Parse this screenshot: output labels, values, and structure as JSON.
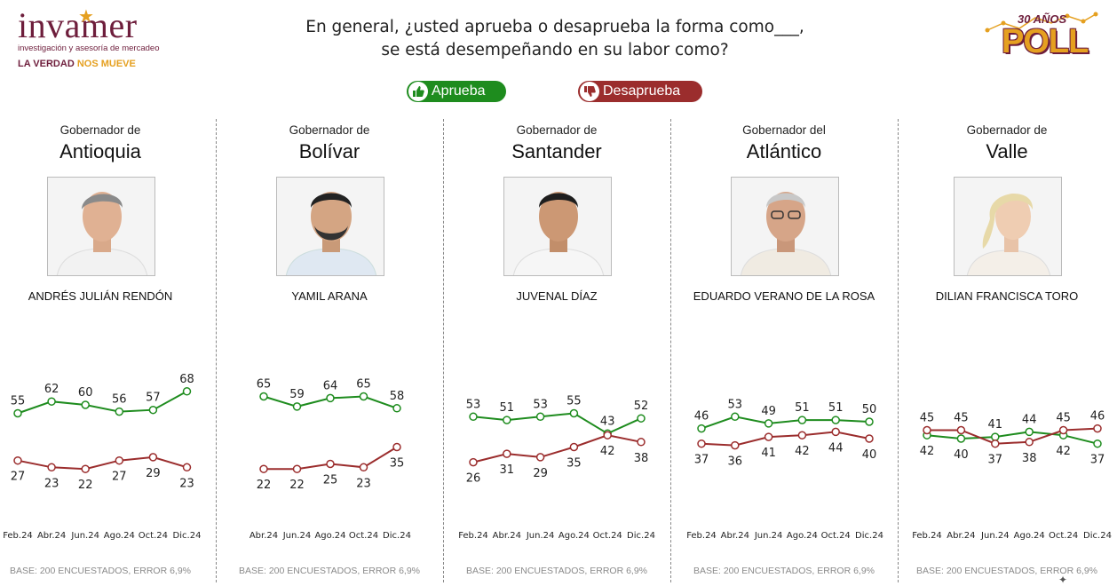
{
  "header": {
    "brand_name": "invamer",
    "brand_subtitle": "investigación y asesoría de mercadeo",
    "brand_tagline_part1": "LA VERDAD",
    "brand_tagline_part2": "NOS MUEVE",
    "badge_years": "30 AÑOS",
    "badge_word": "POLL",
    "question_line1": "En general, ¿usted aprueba o desaprueba la forma como___,",
    "question_line2": "se está desempeñando en su labor como?"
  },
  "legend": {
    "approve_label": "Aprueba",
    "disapprove_label": "Desaprueba",
    "approve_icon": "thumbs-up-icon",
    "disapprove_icon": "thumbs-down-icon"
  },
  "colors": {
    "approve": "#1e8c1e",
    "disapprove": "#9b2d2d",
    "brand": "#6e1e3c",
    "accent": "#e5a020"
  },
  "panels": [
    {
      "title": "Gobernador de",
      "region": "Antioquia",
      "name": "ANDRÉS JULIÁN RENDÓN",
      "base": "BASE: 200 ENCUESTADOS, ERROR 6,9%"
    },
    {
      "title": "Gobernador de",
      "region": "Bolívar",
      "name": "YAMIL ARANA",
      "base": "BASE: 200 ENCUESTADOS, ERROR 6,9%"
    },
    {
      "title": "Gobernador de",
      "region": "Santander",
      "name": "JUVENAL DÍAZ",
      "base": "BASE: 200 ENCUESTADOS, ERROR 6,9%"
    },
    {
      "title": "Gobernador del",
      "region": "Atlántico",
      "name": "EDUARDO VERANO DE LA ROSA",
      "base": "BASE: 200 ENCUESTADOS, ERROR 6,9%"
    },
    {
      "title": "Gobernador de",
      "region": "Valle",
      "name": "DILIAN FRANCISCA TORO",
      "base": "BASE: 200 ENCUESTADOS, ERROR 6,9%"
    }
  ],
  "chart_data": [
    {
      "type": "line",
      "categories": [
        "Feb.24",
        "Abr.24",
        "Jun.24",
        "Ago.24",
        "Oct.24",
        "Dic.24"
      ],
      "series": [
        {
          "name": "Aprueba",
          "values": [
            55,
            62,
            60,
            56,
            57,
            68
          ]
        },
        {
          "name": "Desaprueba",
          "values": [
            27,
            23,
            22,
            27,
            29,
            23
          ]
        }
      ]
    },
    {
      "type": "line",
      "categories": [
        "Abr.24",
        "Jun.24",
        "Ago.24",
        "Oct.24",
        "Dic.24"
      ],
      "series": [
        {
          "name": "Aprueba",
          "values": [
            65,
            59,
            64,
            65,
            58
          ]
        },
        {
          "name": "Desaprueba",
          "values": [
            22,
            22,
            25,
            23,
            35
          ]
        }
      ]
    },
    {
      "type": "line",
      "categories": [
        "Feb.24",
        "Abr.24",
        "Jun.24",
        "Ago.24",
        "Oct.24",
        "Dic.24"
      ],
      "series": [
        {
          "name": "Aprueba",
          "values": [
            53,
            51,
            53,
            55,
            43,
            52
          ]
        },
        {
          "name": "Desaprueba",
          "values": [
            26,
            31,
            29,
            35,
            42,
            38
          ]
        }
      ]
    },
    {
      "type": "line",
      "categories": [
        "Feb.24",
        "Abr.24",
        "Jun.24",
        "Ago.24",
        "Oct.24",
        "Dic.24"
      ],
      "series": [
        {
          "name": "Aprueba",
          "values": [
            46,
            53,
            49,
            51,
            51,
            50
          ]
        },
        {
          "name": "Desaprueba",
          "values": [
            37,
            36,
            41,
            42,
            44,
            40
          ]
        }
      ]
    },
    {
      "type": "line",
      "categories": [
        "Feb.24",
        "Abr.24",
        "Jun.24",
        "Ago.24",
        "Oct.24",
        "Dic.24"
      ],
      "series": [
        {
          "name": "Aprueba",
          "values": [
            42,
            40,
            41,
            44,
            42,
            37
          ]
        },
        {
          "name": "Desaprueba",
          "values": [
            45,
            45,
            37,
            38,
            45,
            46
          ]
        }
      ]
    }
  ]
}
